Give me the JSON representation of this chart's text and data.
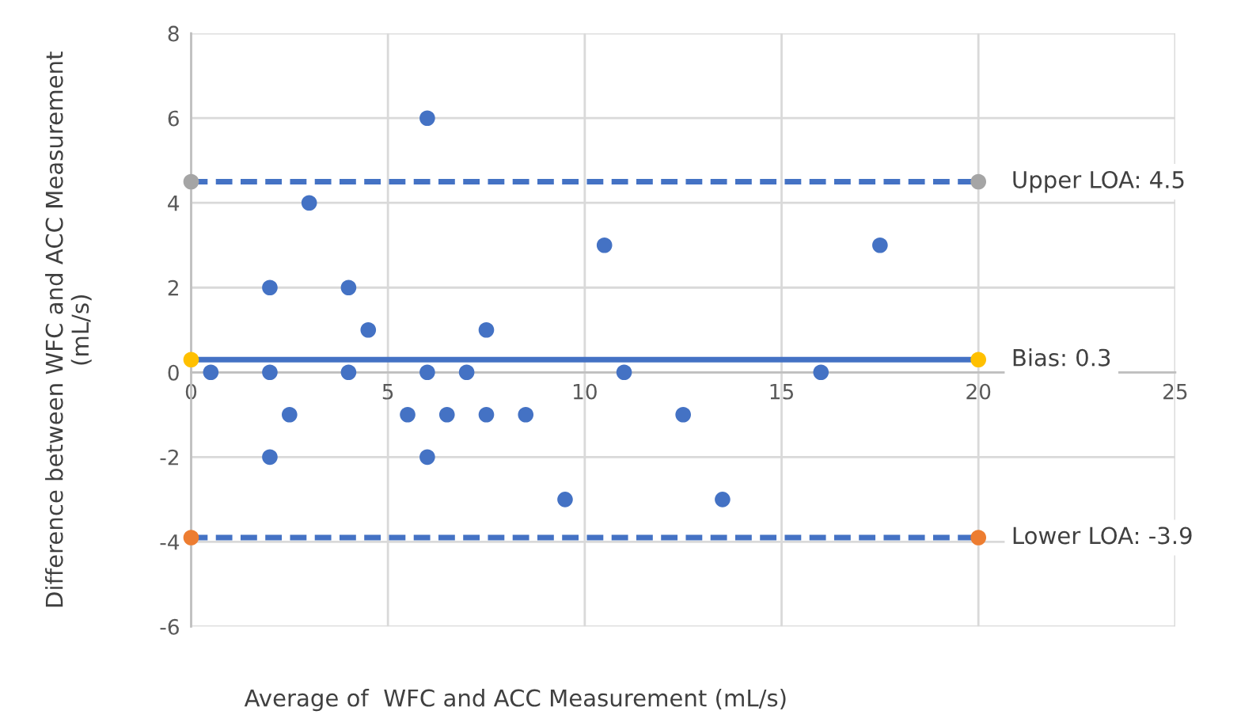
{
  "chart_data": {
    "type": "scatter",
    "xlabel": "Average of  WFC and ACC Measurement (mL/s)",
    "ylabel": "Difference between WFC and ACC Measurement\n(mL/s)",
    "xlim": [
      0,
      25
    ],
    "xticks": [
      0,
      5,
      10,
      15,
      20,
      25
    ],
    "ylim": [
      -6,
      8
    ],
    "yticks": [
      -6,
      -4,
      -2,
      0,
      2,
      4,
      6,
      8
    ],
    "grid": true,
    "marker": "circle",
    "legend": false,
    "series": [
      {
        "color": "#4472c4",
        "x": [
          0.5,
          2,
          2,
          2,
          2.5,
          3,
          4,
          4,
          4.5,
          5.5,
          6,
          6,
          6,
          6.5,
          7,
          7.5,
          7.5,
          8.5,
          9.5,
          10.5,
          11,
          12.5,
          13.5,
          16,
          17.5
        ],
        "values": [
          0,
          2,
          0,
          -2,
          -1,
          4,
          2,
          0,
          1,
          -1,
          6,
          0,
          -2,
          -1,
          0,
          1,
          -1,
          -1,
          -3,
          3,
          0,
          -1,
          -3,
          0,
          3
        ]
      },
      {
        "type": "line",
        "name": "Upper LOA: 4.5",
        "line_style": "dashed",
        "color": "#4472c4",
        "colors": [
          "#a5a5a5",
          "#a5a5a5"
        ],
        "x": [
          0,
          20
        ],
        "values": [
          4.5,
          4.5
        ]
      },
      {
        "type": "line",
        "name": "Bias: 0.3",
        "line_style": "solid",
        "color": "#4472c4",
        "colors": [
          "#ffc000",
          "#ffc000"
        ],
        "x": [
          0,
          20
        ],
        "values": [
          0.3,
          0.3
        ]
      },
      {
        "type": "line",
        "name": "Lower LOA: -3.9",
        "line_style": "dashed",
        "color": "#4472c4",
        "colors": [
          "#ed7d31",
          "#ed7d31"
        ],
        "x": [
          0,
          20
        ],
        "values": [
          -3.9,
          -3.9
        ]
      }
    ]
  }
}
